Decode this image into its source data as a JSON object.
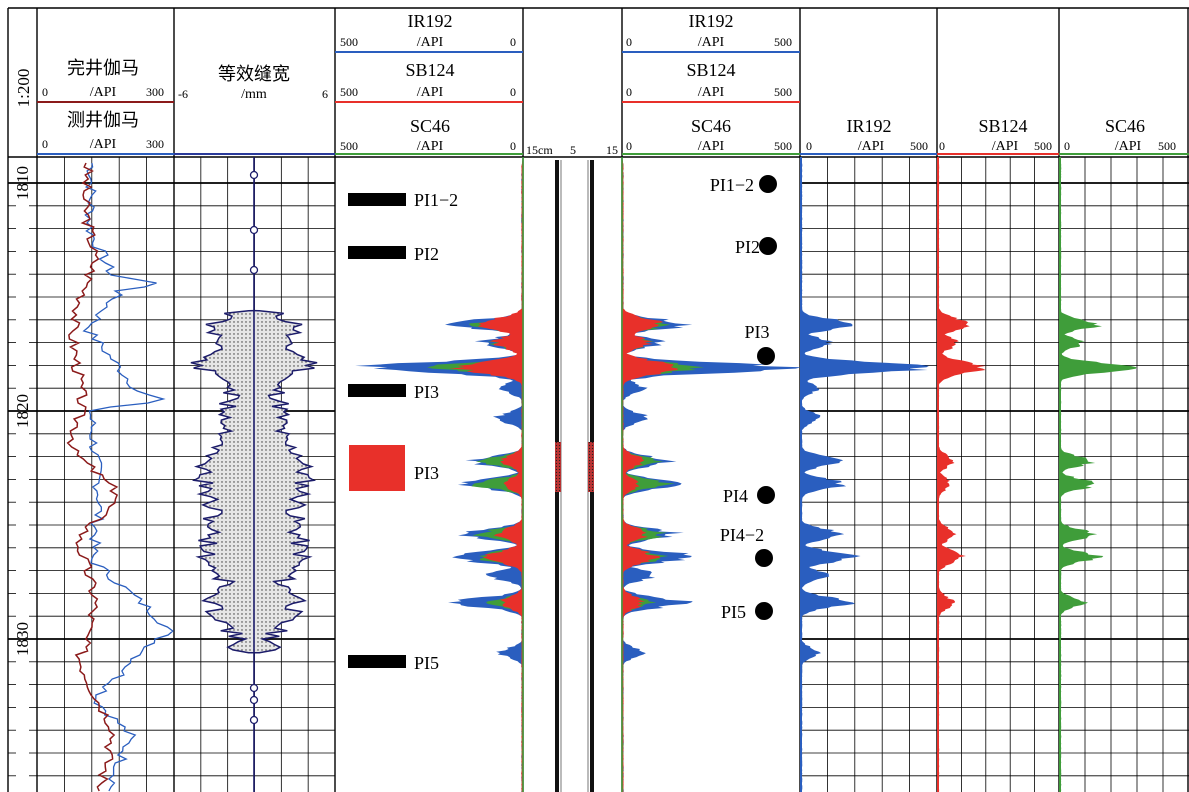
{
  "scale_label": "1:200",
  "colors": {
    "blue": "#2a5ebf",
    "red": "#e8302a",
    "green": "#3f9d3a",
    "darkred": "#8b1a1a",
    "grid": "#000000"
  },
  "depth": {
    "labels": [
      "1810",
      "1820",
      "1830"
    ],
    "range": [
      1809.2,
      1836.8
    ]
  },
  "track1": {
    "curve1_name": "完井伽马",
    "curve1_unit": "/API",
    "curve1_min": "0",
    "curve1_max": "300",
    "curve2_name": "测井伽马",
    "curve2_unit": "/API",
    "curve2_min": "0",
    "curve2_max": "300"
  },
  "track2": {
    "name": "等效缝宽",
    "unit": "/mm",
    "min": "-6",
    "max": "6"
  },
  "track3": {
    "h1": {
      "name": "IR192",
      "unit": "/API",
      "left": "500",
      "right": "0"
    },
    "h2": {
      "name": "SB124",
      "unit": "/API",
      "left": "500",
      "right": "0"
    },
    "h3": {
      "name": "SC46",
      "unit": "/API",
      "left": "500",
      "right": "0"
    }
  },
  "track4": {
    "label": "15cm",
    "mid": "5",
    "right": "15"
  },
  "track5": {
    "h1": {
      "name": "IR192",
      "unit": "/API",
      "left": "0",
      "right": "500"
    },
    "h2": {
      "name": "SB124",
      "unit": "/API",
      "left": "0",
      "right": "500"
    },
    "h3": {
      "name": "SC46",
      "unit": "/API",
      "left": "0",
      "right": "500"
    }
  },
  "track6": {
    "name": "IR192",
    "unit": "/API",
    "min": "0",
    "max": "500"
  },
  "track7": {
    "name": "SB124",
    "unit": "/API",
    "min": "0",
    "max": "500"
  },
  "track8": {
    "name": "SC46",
    "unit": "/API",
    "min": "0",
    "max": "500"
  },
  "left_markers": [
    {
      "label": "PI1−2",
      "depth": 1811.0,
      "kind": "bar"
    },
    {
      "label": "PI2",
      "depth": 1813.5,
      "kind": "bar"
    },
    {
      "label": "PI3",
      "depth": 1819.5,
      "kind": "bar"
    },
    {
      "label": "PI3",
      "depth": 1822.6,
      "kind": "block"
    },
    {
      "label": "PI5",
      "depth": 1831.0,
      "kind": "bar"
    }
  ],
  "right_markers": [
    {
      "label": "PI1−2",
      "depth": 1810.5,
      "label_depth": 1810.5
    },
    {
      "label": "PI2",
      "depth": 1813.3,
      "label_depth": 1813.3
    },
    {
      "label": "PI3",
      "depth": 1818.5,
      "label_depth": 1817.6
    },
    {
      "label": "PI4",
      "depth": 1823.6,
      "label_depth": 1823.6
    },
    {
      "label": "PI4−2",
      "depth": 1826.5,
      "label_depth": 1825.7
    },
    {
      "label": "PI5",
      "depth": 1828.6,
      "label_depth": 1828.6
    }
  ],
  "chart_data": {
    "type": "well-log",
    "depth_range": [
      1809.2,
      1836.8
    ],
    "depth_labels": [
      1810,
      1820,
      1830
    ],
    "tracer_peaks": {
      "note": "",
      "IR192": [
        [
          1816.2,
          180
        ],
        [
          1817.0,
          110
        ],
        [
          1818.1,
          430
        ],
        [
          1819.0,
          60
        ],
        [
          1820.3,
          70
        ],
        [
          1822.2,
          130
        ],
        [
          1823.2,
          150
        ],
        [
          1825.4,
          150
        ],
        [
          1826.4,
          200
        ],
        [
          1827.2,
          90
        ],
        [
          1828.4,
          170
        ],
        [
          1830.6,
          60
        ]
      ],
      "SB124": [
        [
          1816.2,
          120
        ],
        [
          1817.0,
          80
        ],
        [
          1818.1,
          180
        ],
        [
          1822.2,
          60
        ],
        [
          1823.2,
          50
        ],
        [
          1825.4,
          70
        ],
        [
          1826.4,
          100
        ],
        [
          1828.4,
          60
        ]
      ],
      "SC46": [
        [
          1816.2,
          150
        ],
        [
          1817.0,
          90
        ],
        [
          1818.1,
          260
        ],
        [
          1822.2,
          120
        ],
        [
          1823.2,
          140
        ],
        [
          1825.4,
          130
        ],
        [
          1826.4,
          140
        ],
        [
          1828.4,
          90
        ]
      ]
    },
    "equivalent_fracture_width_mm": [
      [
        1815.7,
        1.5
      ],
      [
        1816.3,
        3.5
      ],
      [
        1817.0,
        2.0
      ],
      [
        1818.0,
        4.5
      ],
      [
        1818.8,
        1.5
      ],
      [
        1819.6,
        2.0
      ],
      [
        1821.3,
        2.0
      ],
      [
        1822.0,
        3.6
      ],
      [
        1823.2,
        3.8
      ],
      [
        1824.6,
        3.0
      ],
      [
        1826.4,
        3.6
      ],
      [
        1827.6,
        2.0
      ],
      [
        1828.2,
        3.6
      ],
      [
        1829.8,
        1.5
      ],
      [
        1830.5,
        1.2
      ]
    ]
  }
}
